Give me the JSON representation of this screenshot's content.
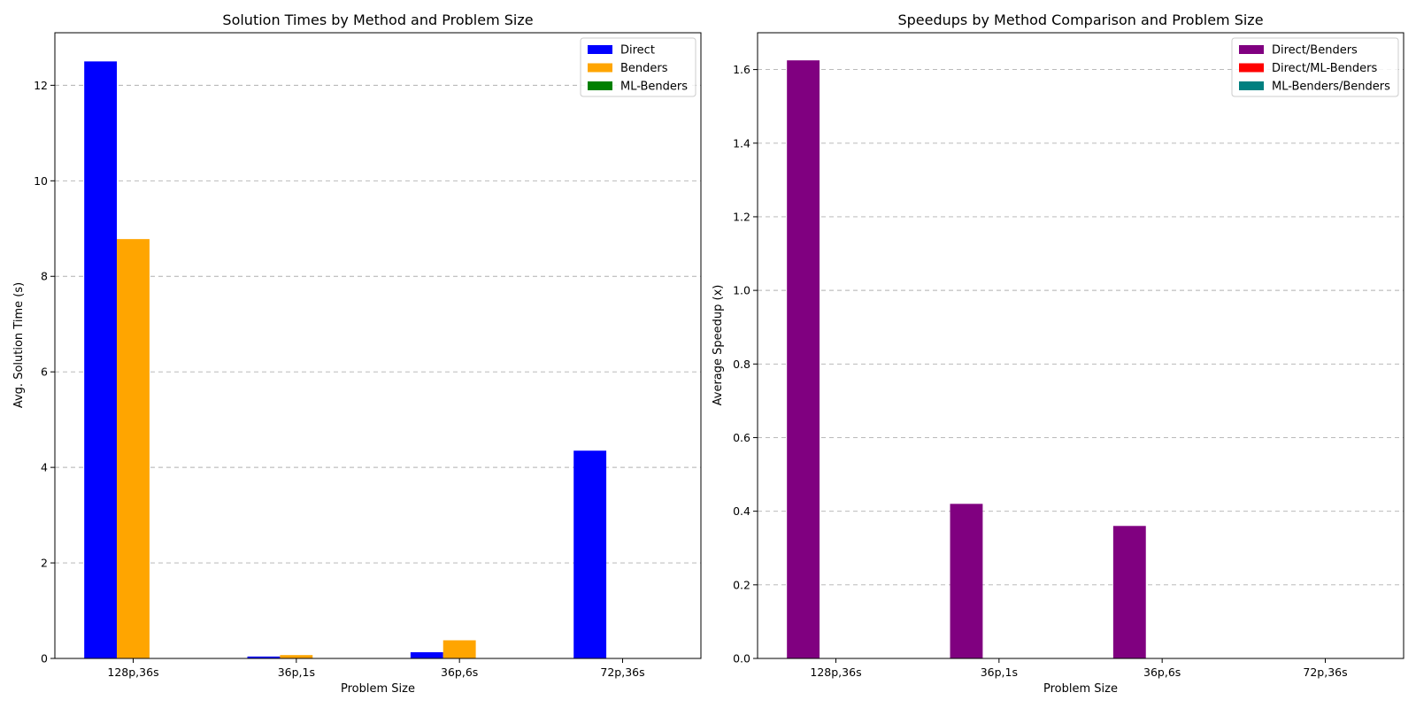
{
  "chart_data": [
    {
      "type": "bar",
      "title": "Solution Times by Method and Problem Size",
      "xlabel": "Problem Size",
      "ylabel": "Avg. Solution Time (s)",
      "categories": [
        "128p,36s",
        "36p,1s",
        "36p,6s",
        "72p,36s"
      ],
      "ylim": [
        0,
        13.1
      ],
      "yticks": [
        0,
        2,
        4,
        6,
        8,
        10,
        12
      ],
      "grid": "y-dashed",
      "legend_position": "top-right",
      "series": [
        {
          "name": "Direct",
          "color": "#0000ff",
          "values": [
            12.5,
            0.04,
            0.13,
            4.35
          ]
        },
        {
          "name": "Benders",
          "color": "#ffa500",
          "values": [
            8.78,
            0.07,
            0.38,
            0
          ]
        },
        {
          "name": "ML-Benders",
          "color": "#008000",
          "values": [
            0,
            0,
            0,
            0
          ]
        }
      ]
    },
    {
      "type": "bar",
      "title": "Speedups by Method Comparison and Problem Size",
      "xlabel": "Problem Size",
      "ylabel": "Average Speedup (x)",
      "categories": [
        "128p,36s",
        "36p,1s",
        "36p,6s",
        "72p,36s"
      ],
      "ylim": [
        0,
        1.7
      ],
      "yticks": [
        0.0,
        0.2,
        0.4,
        0.6,
        0.8,
        1.0,
        1.2,
        1.4,
        1.6
      ],
      "grid": "y-dashed",
      "legend_position": "top-right",
      "series": [
        {
          "name": "Direct/Benders",
          "color": "#800080",
          "values": [
            1.625,
            0.42,
            0.36,
            0
          ]
        },
        {
          "name": "Direct/ML-Benders",
          "color": "#ff0000",
          "values": [
            0,
            0,
            0,
            0
          ]
        },
        {
          "name": "ML-Benders/Benders",
          "color": "#008080",
          "values": [
            0,
            0,
            0,
            0
          ]
        }
      ]
    }
  ]
}
